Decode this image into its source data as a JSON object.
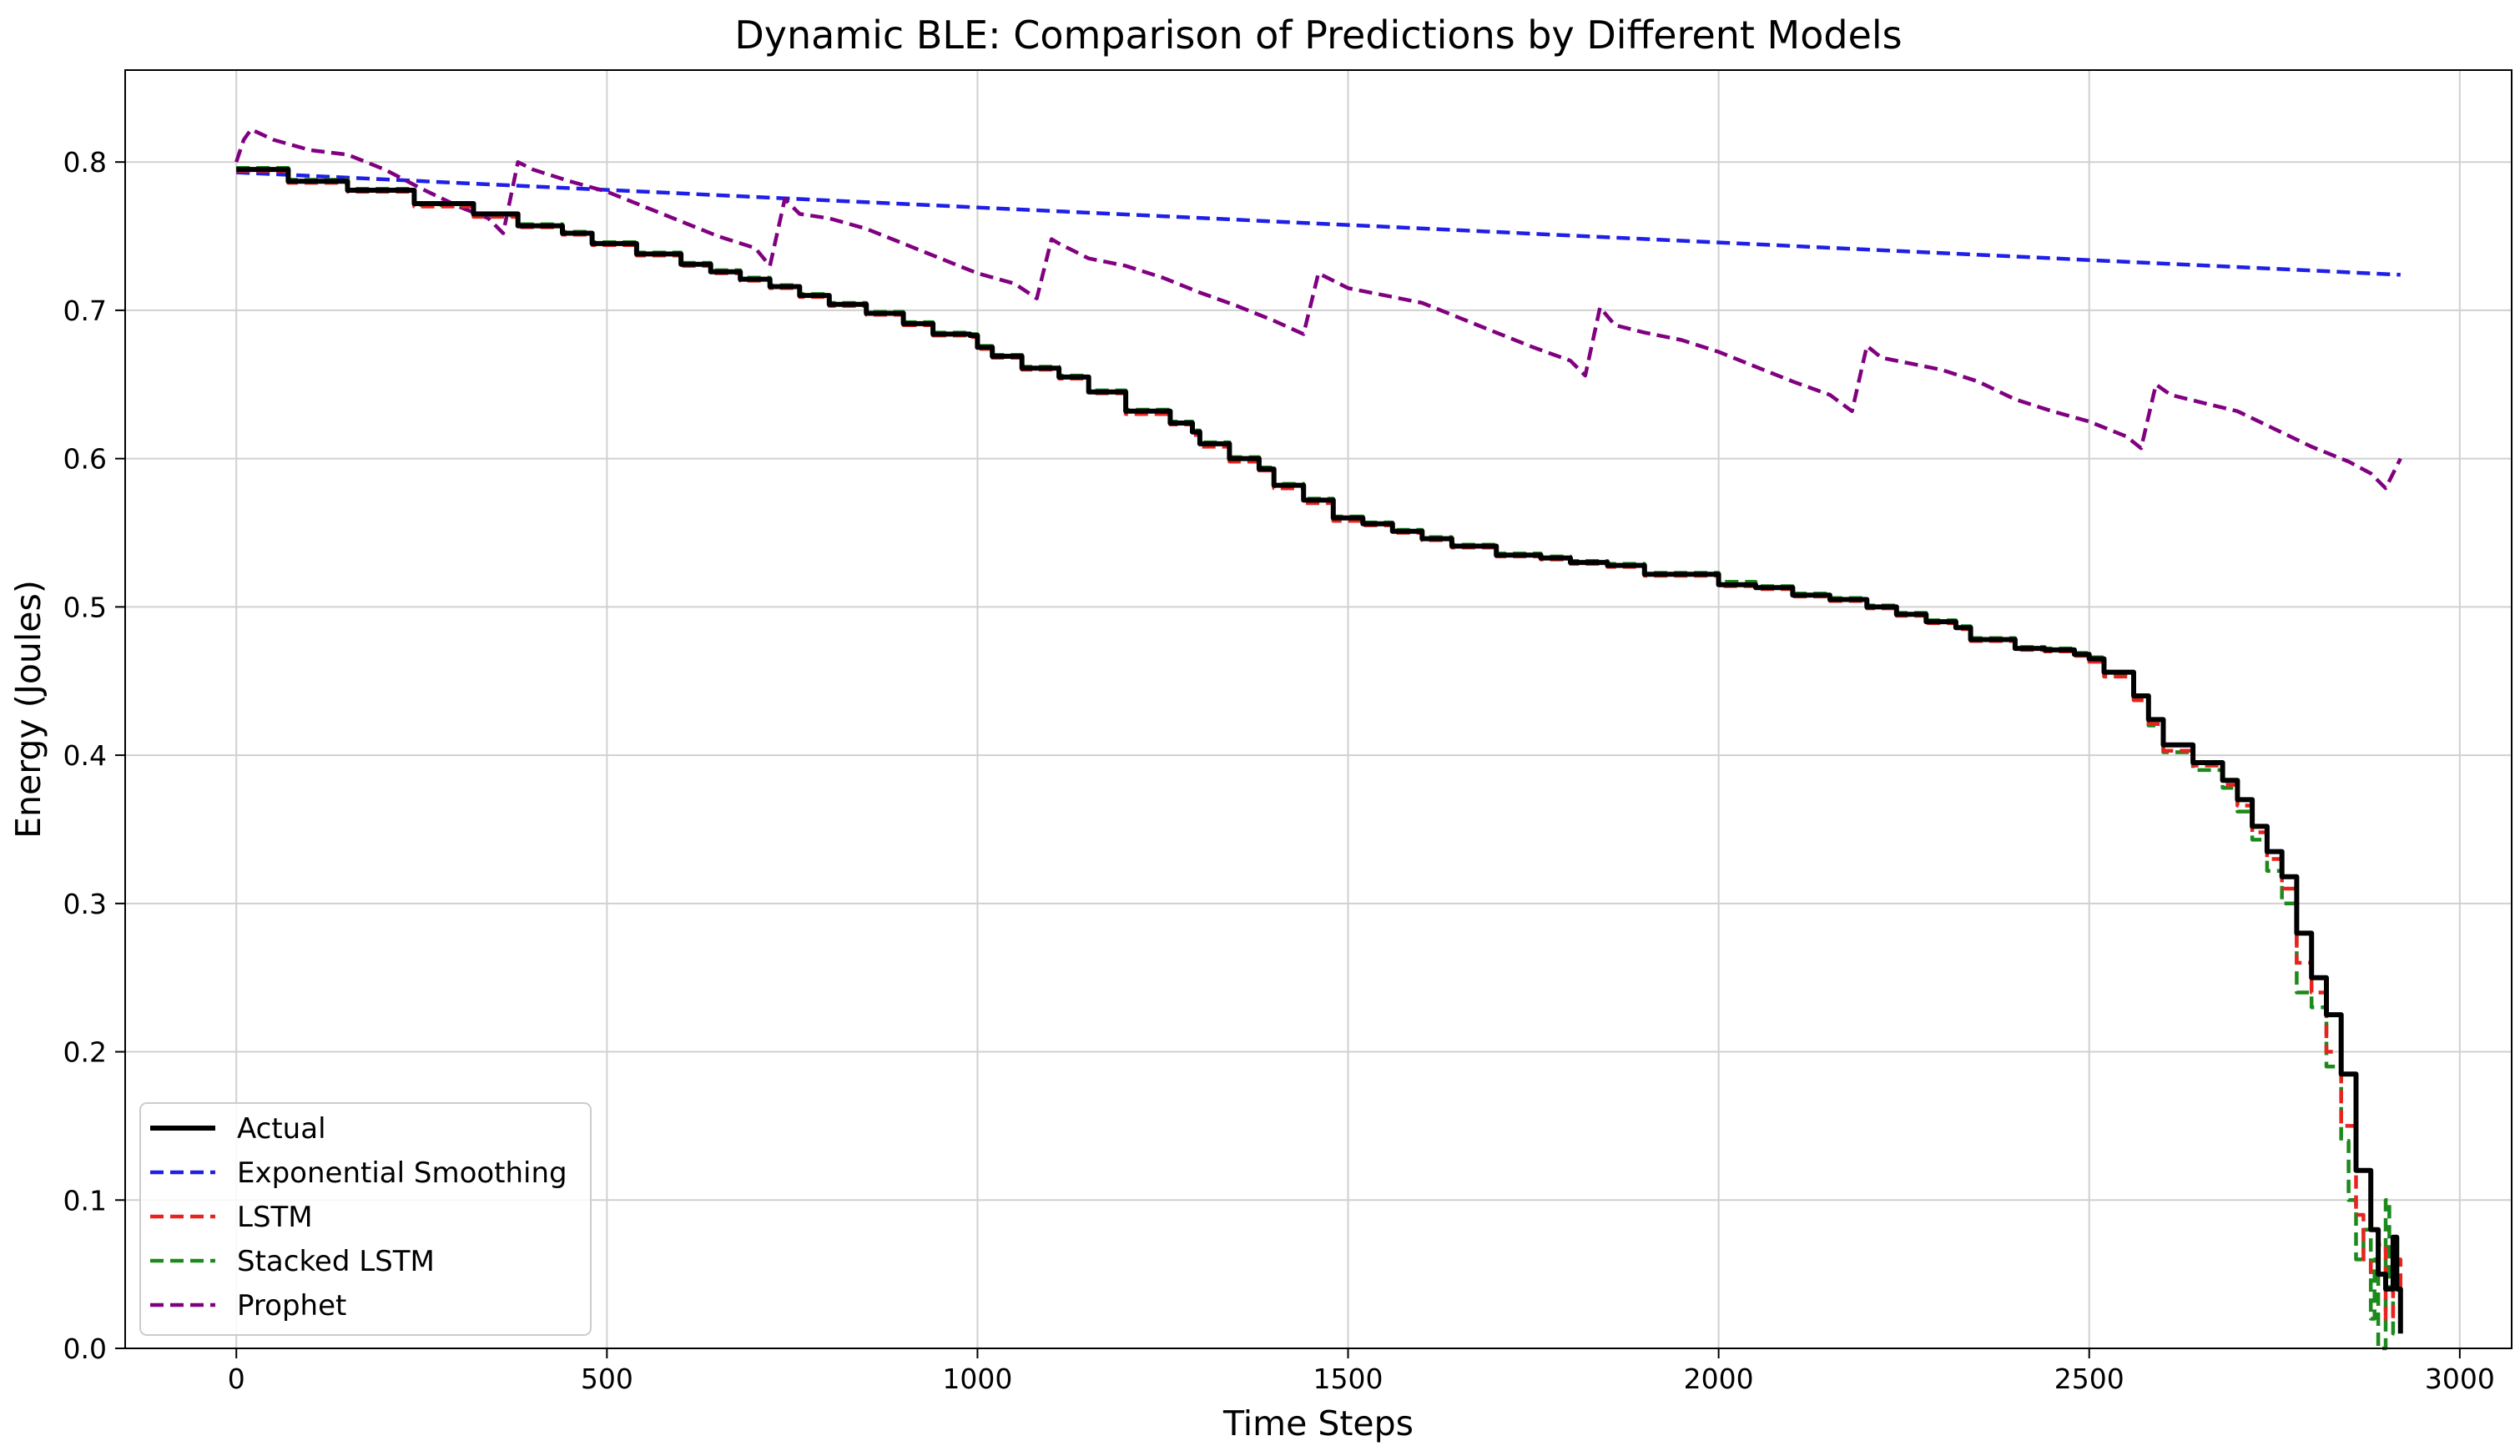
{
  "chart_data": {
    "type": "line",
    "title": "Dynamic BLE: Comparison of Predictions by Different Models",
    "xlabel": "Time Steps",
    "ylabel": "Energy (Joules)",
    "xlim": [
      -150,
      3070
    ],
    "ylim": [
      0.0,
      0.862
    ],
    "xticks": [
      0,
      500,
      1000,
      1500,
      2000,
      2500,
      3000
    ],
    "yticks": [
      0.0,
      0.1,
      0.2,
      0.3,
      0.4,
      0.5,
      0.6,
      0.7,
      0.8
    ],
    "xtick_labels": [
      "0",
      "500",
      "1000",
      "1500",
      "2000",
      "2500",
      "3000"
    ],
    "ytick_labels": [
      "0.0",
      "0.1",
      "0.2",
      "0.3",
      "0.4",
      "0.5",
      "0.6",
      "0.7",
      "0.8"
    ],
    "grid": true,
    "legend_position": "lower-left",
    "series": [
      {
        "name": "Actual",
        "color": "#000000",
        "style": "solid",
        "x": [
          0,
          70,
          150,
          240,
          320,
          380,
          440,
          480,
          540,
          600,
          640,
          680,
          720,
          760,
          800,
          850,
          900,
          940,
          990,
          1000,
          1020,
          1060,
          1110,
          1150,
          1200,
          1260,
          1290,
          1300,
          1340,
          1380,
          1400,
          1440,
          1480,
          1520,
          1560,
          1600,
          1640,
          1700,
          1760,
          1800,
          1850,
          1900,
          2000,
          2050,
          2100,
          2150,
          2200,
          2240,
          2280,
          2320,
          2340,
          2400,
          2440,
          2480,
          2500,
          2520,
          2560,
          2580,
          2600,
          2640,
          2680,
          2700,
          2720,
          2740,
          2760,
          2780,
          2800,
          2820,
          2840,
          2860,
          2880,
          2890,
          2900,
          2910,
          2915,
          2920
        ],
        "y": [
          0.795,
          0.787,
          0.781,
          0.772,
          0.765,
          0.757,
          0.752,
          0.745,
          0.738,
          0.731,
          0.726,
          0.721,
          0.716,
          0.71,
          0.704,
          0.698,
          0.691,
          0.684,
          0.683,
          0.675,
          0.669,
          0.661,
          0.655,
          0.645,
          0.632,
          0.624,
          0.618,
          0.61,
          0.6,
          0.593,
          0.582,
          0.572,
          0.56,
          0.556,
          0.551,
          0.546,
          0.541,
          0.535,
          0.533,
          0.53,
          0.528,
          0.522,
          0.515,
          0.513,
          0.508,
          0.505,
          0.5,
          0.495,
          0.49,
          0.486,
          0.478,
          0.472,
          0.471,
          0.468,
          0.465,
          0.456,
          0.44,
          0.424,
          0.407,
          0.395,
          0.383,
          0.37,
          0.352,
          0.335,
          0.318,
          0.28,
          0.25,
          0.225,
          0.185,
          0.12,
          0.08,
          0.05,
          0.04,
          0.075,
          0.04,
          0.01
        ]
      },
      {
        "name": "Exponential Smoothing",
        "color": "#1f1fe8",
        "style": "dashed",
        "x": [
          0,
          2920
        ],
        "y": [
          0.793,
          0.724
        ]
      },
      {
        "name": "LSTM",
        "color": "#e8231f",
        "style": "dashed",
        "x": [
          0,
          70,
          150,
          240,
          320,
          380,
          440,
          480,
          540,
          600,
          640,
          680,
          720,
          760,
          800,
          850,
          900,
          940,
          990,
          1000,
          1020,
          1060,
          1110,
          1150,
          1200,
          1260,
          1290,
          1300,
          1340,
          1380,
          1400,
          1440,
          1480,
          1520,
          1560,
          1600,
          1640,
          1700,
          1760,
          1800,
          1850,
          1900,
          2000,
          2050,
          2100,
          2150,
          2200,
          2240,
          2280,
          2320,
          2340,
          2400,
          2440,
          2480,
          2500,
          2520,
          2560,
          2580,
          2600,
          2640,
          2680,
          2700,
          2720,
          2740,
          2760,
          2780,
          2800,
          2820,
          2840,
          2860,
          2870,
          2880,
          2890,
          2900,
          2910,
          2920
        ],
        "y": [
          0.794,
          0.786,
          0.78,
          0.77,
          0.763,
          0.756,
          0.751,
          0.744,
          0.737,
          0.73,
          0.725,
          0.72,
          0.715,
          0.709,
          0.703,
          0.697,
          0.69,
          0.683,
          0.682,
          0.674,
          0.668,
          0.66,
          0.654,
          0.644,
          0.63,
          0.623,
          0.616,
          0.608,
          0.598,
          0.592,
          0.58,
          0.57,
          0.558,
          0.555,
          0.55,
          0.545,
          0.54,
          0.534,
          0.532,
          0.529,
          0.527,
          0.521,
          0.514,
          0.512,
          0.507,
          0.504,
          0.499,
          0.494,
          0.489,
          0.485,
          0.477,
          0.471,
          0.47,
          0.467,
          0.463,
          0.453,
          0.437,
          0.421,
          0.403,
          0.393,
          0.38,
          0.366,
          0.348,
          0.33,
          0.31,
          0.26,
          0.24,
          0.2,
          0.15,
          0.09,
          0.06,
          0.05,
          0.07,
          0.02,
          0.06,
          0.02
        ]
      },
      {
        "name": "Stacked LSTM",
        "color": "#1b8a1b",
        "style": "dashed",
        "x": [
          0,
          70,
          150,
          240,
          320,
          380,
          440,
          480,
          540,
          600,
          640,
          680,
          720,
          760,
          800,
          850,
          900,
          940,
          990,
          1000,
          1020,
          1060,
          1110,
          1150,
          1200,
          1260,
          1290,
          1300,
          1340,
          1380,
          1400,
          1440,
          1480,
          1520,
          1560,
          1600,
          1640,
          1700,
          1760,
          1800,
          1850,
          1900,
          2000,
          2050,
          2100,
          2150,
          2200,
          2240,
          2280,
          2320,
          2340,
          2400,
          2440,
          2480,
          2500,
          2520,
          2560,
          2580,
          2600,
          2640,
          2680,
          2700,
          2720,
          2740,
          2760,
          2780,
          2800,
          2820,
          2840,
          2850,
          2860,
          2870,
          2880,
          2885,
          2890,
          2900,
          2905,
          2910,
          2920
        ],
        "y": [
          0.796,
          0.788,
          0.782,
          0.771,
          0.764,
          0.758,
          0.753,
          0.746,
          0.739,
          0.732,
          0.727,
          0.722,
          0.717,
          0.711,
          0.705,
          0.699,
          0.692,
          0.685,
          0.684,
          0.676,
          0.67,
          0.662,
          0.656,
          0.646,
          0.633,
          0.625,
          0.619,
          0.611,
          0.601,
          0.594,
          0.583,
          0.573,
          0.561,
          0.557,
          0.552,
          0.547,
          0.542,
          0.536,
          0.534,
          0.531,
          0.529,
          0.523,
          0.517,
          0.514,
          0.509,
          0.506,
          0.501,
          0.496,
          0.491,
          0.487,
          0.479,
          0.473,
          0.472,
          0.469,
          0.466,
          0.455,
          0.438,
          0.42,
          0.402,
          0.39,
          0.378,
          0.362,
          0.343,
          0.322,
          0.3,
          0.24,
          0.23,
          0.19,
          0.14,
          0.1,
          0.06,
          0.08,
          0.02,
          0.06,
          0.0,
          0.1,
          0.04,
          0.01,
          0.02
        ]
      },
      {
        "name": "Prophet",
        "color": "#800080",
        "style": "dashed",
        "x": [
          0,
          10,
          20,
          50,
          100,
          150,
          200,
          250,
          300,
          340,
          360,
          380,
          400,
          450,
          500,
          550,
          600,
          650,
          700,
          720,
          740,
          760,
          800,
          850,
          900,
          950,
          1000,
          1050,
          1080,
          1100,
          1110,
          1130,
          1150,
          1200,
          1250,
          1300,
          1350,
          1400,
          1440,
          1460,
          1480,
          1500,
          1550,
          1600,
          1650,
          1700,
          1750,
          1800,
          1820,
          1840,
          1860,
          1900,
          1950,
          2000,
          2050,
          2100,
          2150,
          2180,
          2200,
          2220,
          2250,
          2300,
          2350,
          2400,
          2450,
          2500,
          2550,
          2570,
          2590,
          2610,
          2650,
          2700,
          2750,
          2800,
          2850,
          2880,
          2900,
          2920
        ],
        "y": [
          0.8,
          0.815,
          0.822,
          0.815,
          0.808,
          0.805,
          0.795,
          0.782,
          0.77,
          0.762,
          0.752,
          0.8,
          0.795,
          0.787,
          0.78,
          0.77,
          0.76,
          0.75,
          0.742,
          0.73,
          0.775,
          0.765,
          0.762,
          0.755,
          0.745,
          0.735,
          0.725,
          0.718,
          0.708,
          0.748,
          0.745,
          0.74,
          0.735,
          0.73,
          0.722,
          0.712,
          0.703,
          0.693,
          0.684,
          0.725,
          0.72,
          0.715,
          0.71,
          0.705,
          0.695,
          0.685,
          0.675,
          0.666,
          0.656,
          0.702,
          0.69,
          0.685,
          0.68,
          0.672,
          0.662,
          0.652,
          0.643,
          0.632,
          0.676,
          0.668,
          0.665,
          0.66,
          0.652,
          0.64,
          0.632,
          0.625,
          0.615,
          0.607,
          0.65,
          0.643,
          0.638,
          0.632,
          0.62,
          0.608,
          0.598,
          0.59,
          0.58,
          0.6
        ]
      }
    ]
  }
}
